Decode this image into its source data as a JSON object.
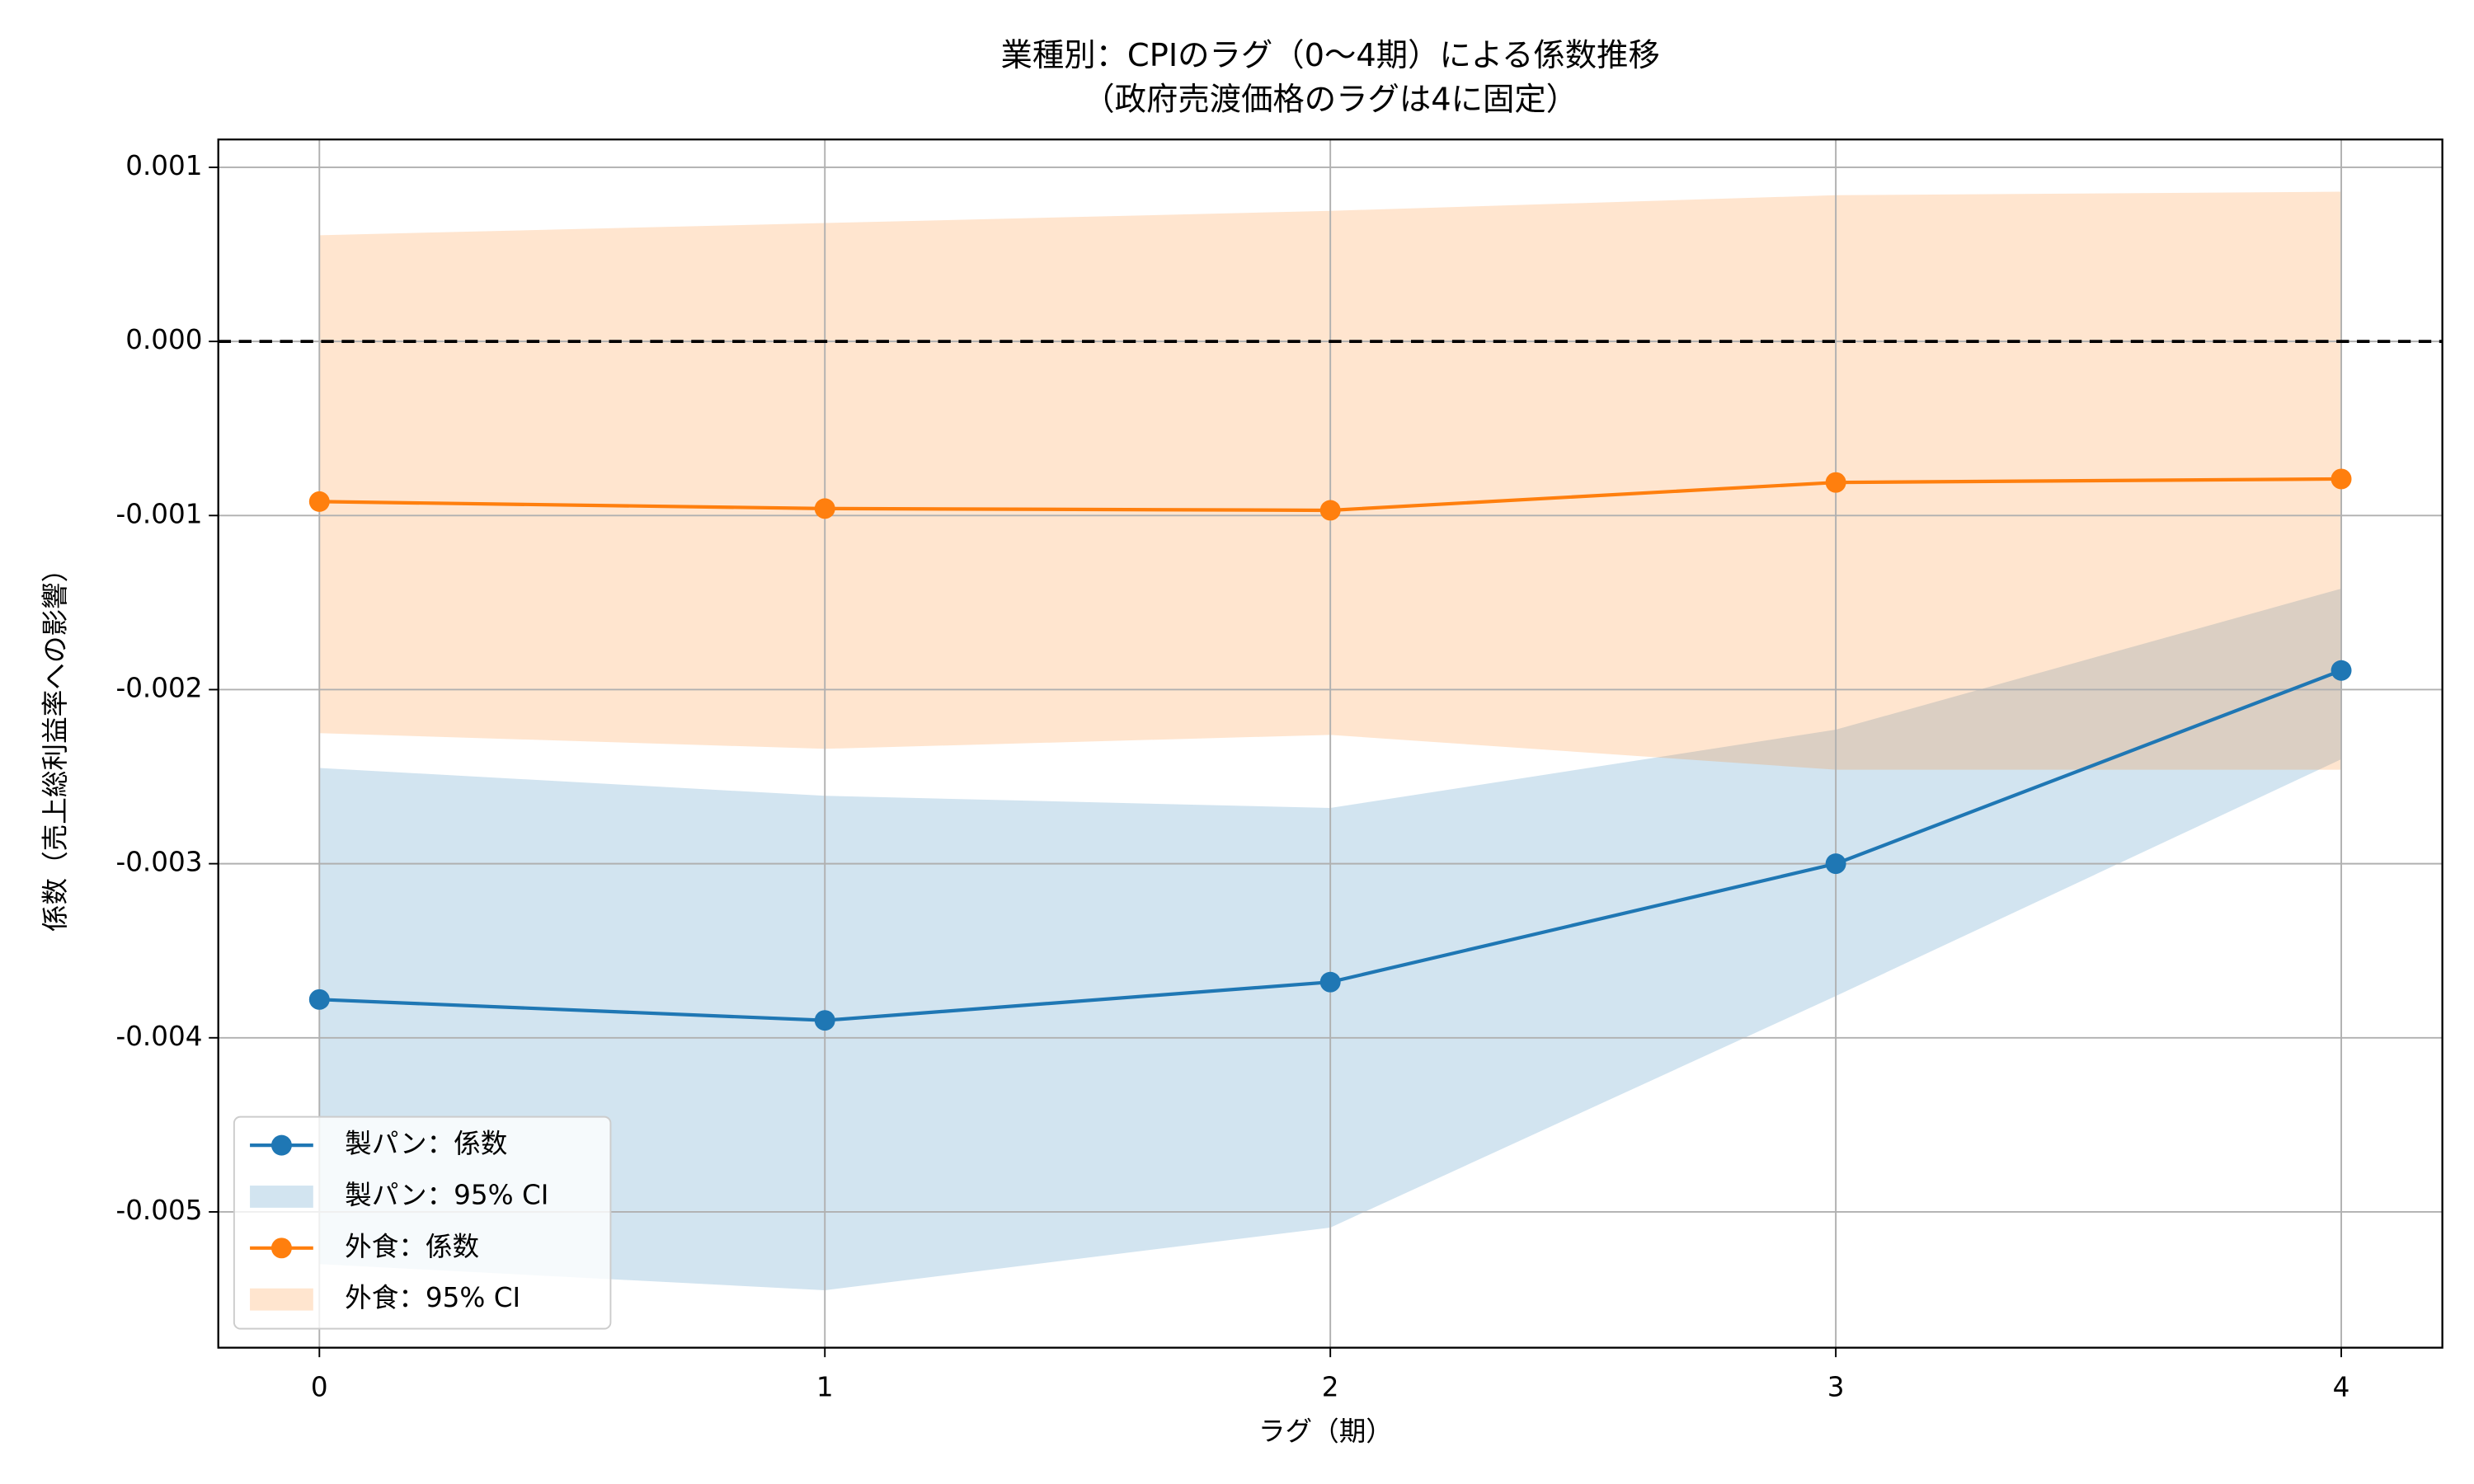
{
  "chart_data": {
    "type": "line",
    "title": "業種別：CPIのラグ（0〜4期）による係数推移",
    "subtitle": "（政府売渡価格のラグは4に固定）",
    "x_label": "ラグ（期）",
    "y_label": "係数（売上総利益率への影響）",
    "x": [
      0,
      1,
      2,
      3,
      4
    ],
    "series": [
      {
        "name": "製パン：係数",
        "color": "#1f77b4",
        "values": [
          -0.00378,
          -0.0039,
          -0.00368,
          -0.003,
          -0.00189
        ],
        "ci_name": "製パン：95% CI",
        "lower": [
          -0.0053,
          -0.00545,
          -0.00509,
          -0.00376,
          -0.0024
        ],
        "upper": [
          -0.00245,
          -0.00261,
          -0.00268,
          -0.00223,
          -0.00142
        ]
      },
      {
        "name": "外食：係数",
        "color": "#ff7f0e",
        "values": [
          -0.00092,
          -0.00096,
          -0.00097,
          -0.00081,
          -0.00079
        ],
        "ci_name": "外食：95% CI",
        "lower": [
          -0.00225,
          -0.00234,
          -0.00226,
          -0.00246,
          -0.00246
        ],
        "upper": [
          0.00061,
          0.00068,
          0.00075,
          0.00084,
          0.00086
        ]
      }
    ],
    "xlim": [
      -0.2,
      4.2
    ],
    "xticks": [
      0,
      1,
      2,
      3,
      4
    ],
    "ylim": [
      -0.00578,
      0.00116
    ],
    "yticks": [
      -0.005,
      -0.004,
      -0.003,
      -0.002,
      -0.001,
      {
        "value": 0,
        "label": "0.000"
      },
      0.001
    ],
    "zero_line": 0,
    "grid": true,
    "legend": "lower left"
  }
}
